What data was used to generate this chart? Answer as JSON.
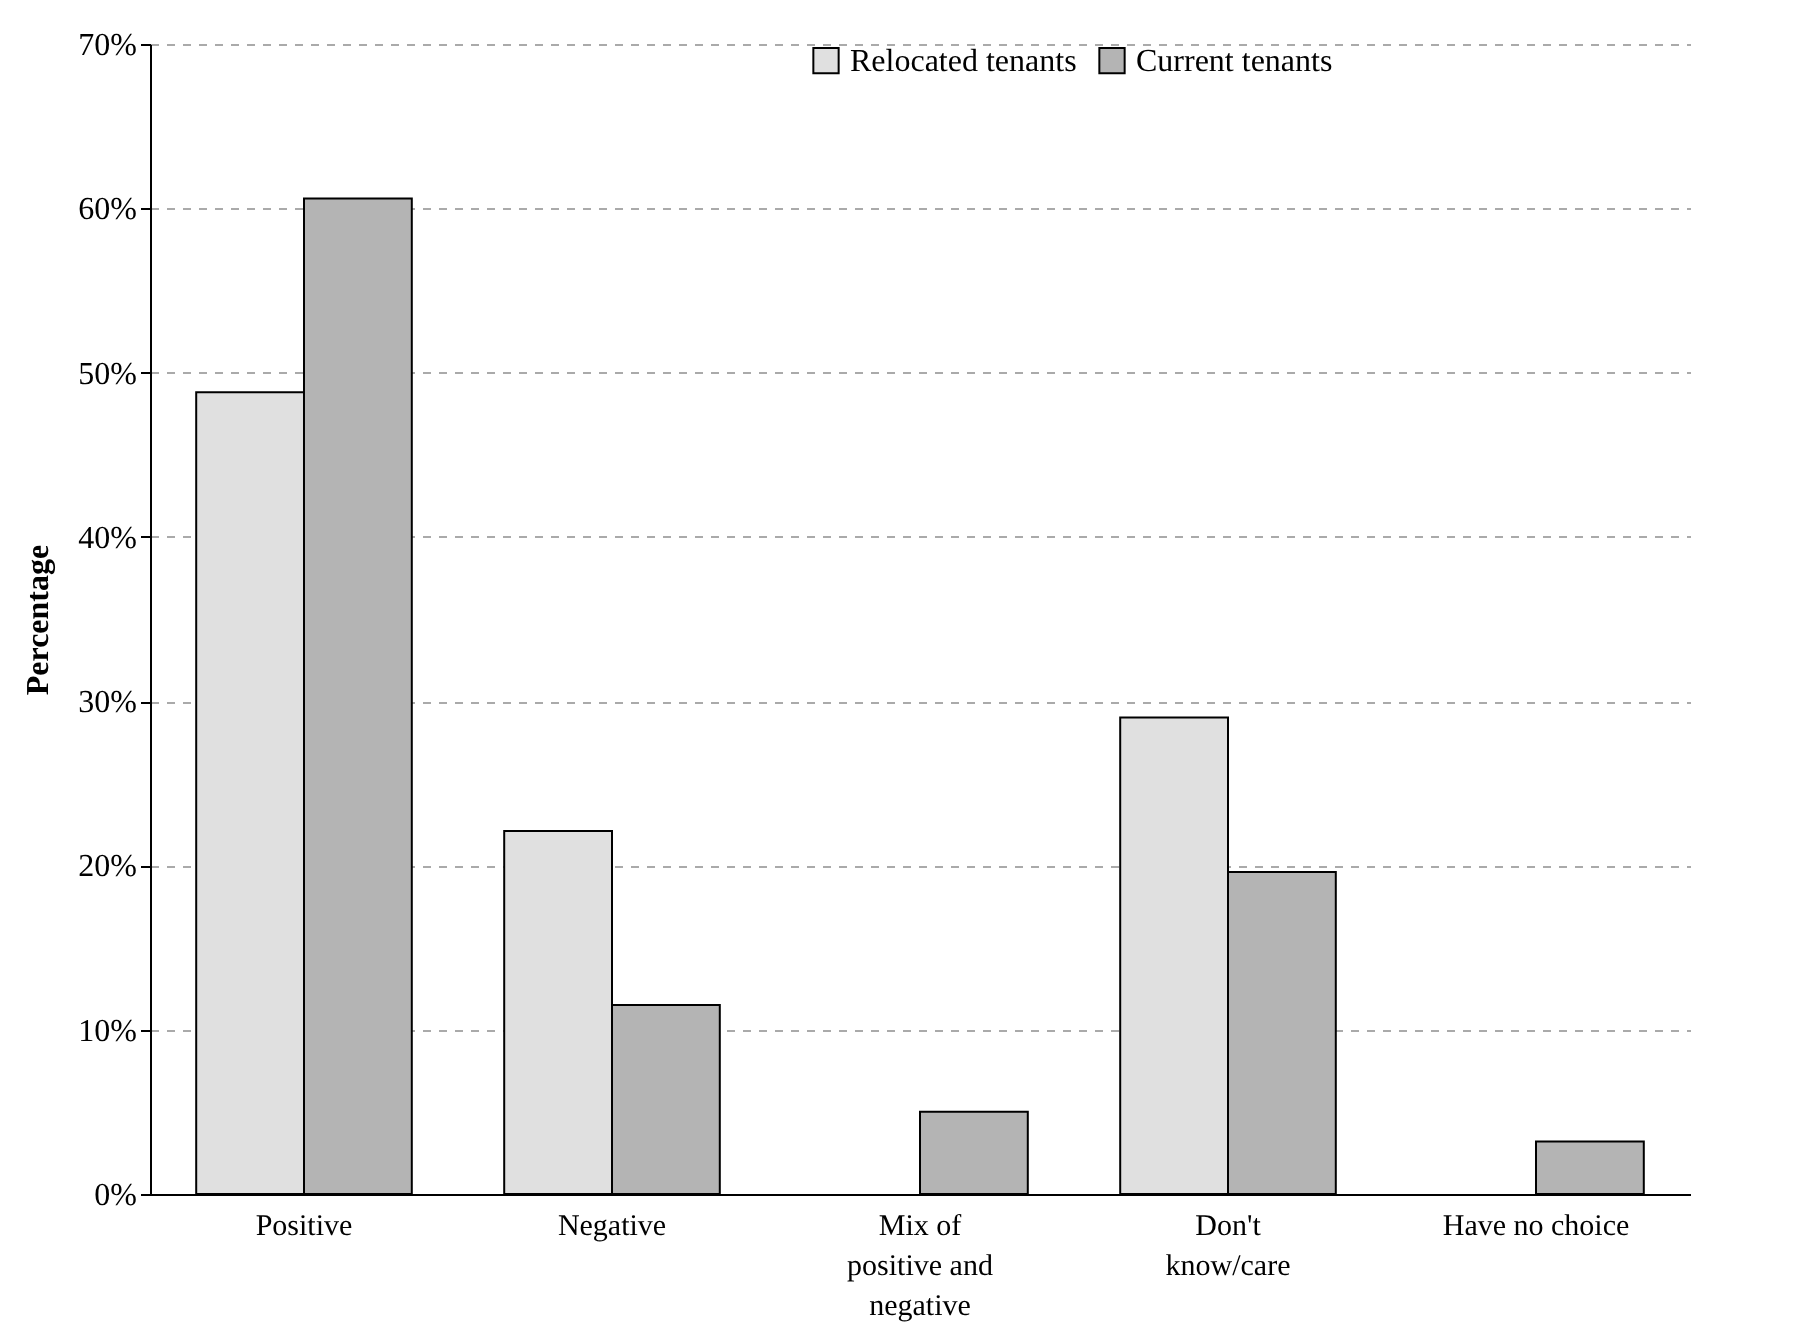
{
  "chart_data": {
    "type": "bar",
    "ylabel": "Percentage",
    "categories": [
      "Positive",
      "Negative",
      "Mix of positive and negative",
      "Don't know/care",
      "Have no choice"
    ],
    "series": [
      {
        "name": "Relocated tenants",
        "color": "#e0e0e0",
        "values": [
          48.8,
          22.1,
          null,
          29.0,
          null
        ]
      },
      {
        "name": "Current tenants",
        "color": "#b4b4b4",
        "values": [
          60.6,
          11.5,
          5.0,
          19.6,
          3.2
        ]
      }
    ],
    "ylim": [
      0,
      70
    ],
    "yticks": [
      {
        "value": 0,
        "label": "0%"
      },
      {
        "value": 10,
        "label": "10%"
      },
      {
        "value": 20,
        "label": "20%"
      },
      {
        "value": 30,
        "label": "30%"
      },
      {
        "value": 40,
        "label": "40%"
      },
      {
        "value": 50,
        "label": "50%"
      },
      {
        "value": 60,
        "label": "60%"
      },
      {
        "value": 70,
        "label": "70%"
      }
    ],
    "grid": "y",
    "legend": "top right"
  }
}
